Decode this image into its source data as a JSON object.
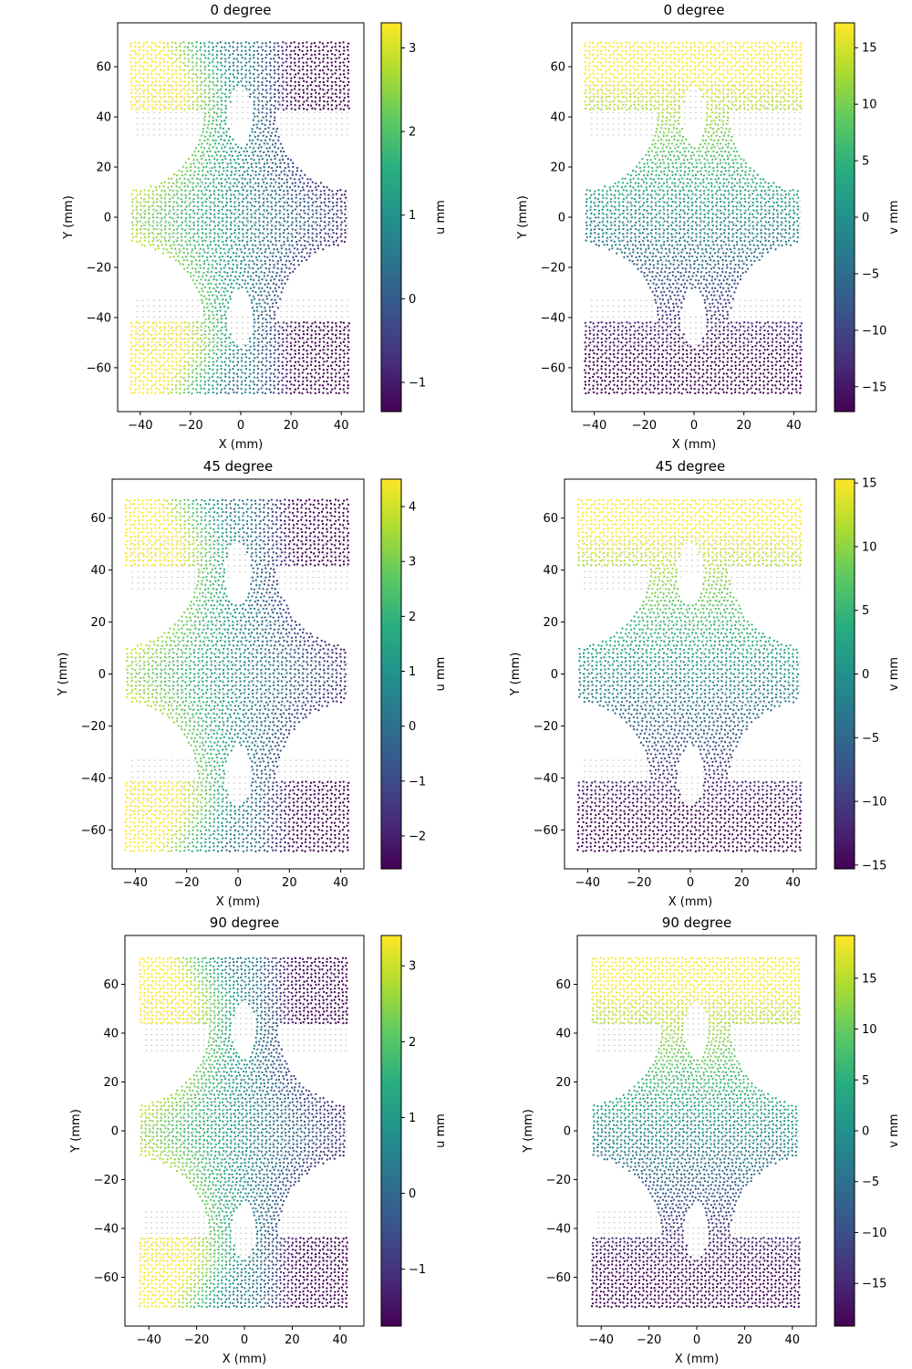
{
  "chart_data": [
    {
      "type": "scatter",
      "title": "0 degree",
      "xlabel": "X (mm)",
      "ylabel": "Y (mm)",
      "colorbar_label": "u mm",
      "xlim": [
        -49,
        49
      ],
      "ylim": [
        -77.5,
        77.5
      ],
      "xticks": [
        -40,
        -20,
        0,
        20,
        40
      ],
      "yticks": [
        -60,
        -40,
        -20,
        0,
        20,
        40,
        60
      ],
      "clim": [
        -1.35,
        3.3
      ],
      "cticks": [
        -1,
        0,
        1,
        2,
        3
      ],
      "field": "u",
      "field_range": [
        -1.35,
        3.3
      ],
      "y_extent": 70,
      "neck_half_width": 14,
      "colormap": "viridis",
      "undeformed_color": "#cccccc"
    },
    {
      "type": "scatter",
      "title": "0 degree",
      "xlabel": "X (mm)",
      "ylabel": "Y (mm)",
      "colorbar_label": "v mm",
      "xlim": [
        -49,
        49
      ],
      "ylim": [
        -77.5,
        77.5
      ],
      "xticks": [
        -40,
        -20,
        0,
        20,
        40
      ],
      "yticks": [
        -60,
        -40,
        -20,
        0,
        20,
        40,
        60
      ],
      "clim": [
        -17.2,
        17.2
      ],
      "cticks": [
        -15,
        -10,
        -5,
        0,
        5,
        10,
        15
      ],
      "field": "v",
      "field_range": [
        -17.2,
        17.2
      ],
      "y_extent": 70,
      "neck_half_width": 14,
      "colormap": "viridis",
      "undeformed_color": "#cccccc"
    },
    {
      "type": "scatter",
      "title": "45 degree",
      "xlabel": "X (mm)",
      "ylabel": "Y (mm)",
      "colorbar_label": "u mm",
      "xlim": [
        -49,
        49
      ],
      "ylim": [
        -75,
        75
      ],
      "xticks": [
        -40,
        -20,
        0,
        20,
        40
      ],
      "yticks": [
        -60,
        -40,
        -20,
        0,
        20,
        40,
        60
      ],
      "clim": [
        -2.6,
        4.5
      ],
      "cticks": [
        -2,
        -1,
        0,
        1,
        2,
        3,
        4
      ],
      "field": "u",
      "field_range": [
        -2.6,
        4.5
      ],
      "y_extent": 68,
      "neck_half_width": 15,
      "colormap": "viridis",
      "undeformed_color": "#cccccc"
    },
    {
      "type": "scatter",
      "title": "45 degree",
      "xlabel": "X (mm)",
      "ylabel": "Y (mm)",
      "colorbar_label": "v mm",
      "xlim": [
        -49,
        49
      ],
      "ylim": [
        -75,
        75
      ],
      "xticks": [
        -40,
        -20,
        0,
        20,
        40
      ],
      "yticks": [
        -60,
        -40,
        -20,
        0,
        20,
        40,
        60
      ],
      "clim": [
        -15.3,
        15.3
      ],
      "cticks": [
        -15,
        -10,
        -5,
        0,
        5,
        10,
        15
      ],
      "field": "v",
      "field_range": [
        -15.3,
        15.3
      ],
      "y_extent": 68,
      "neck_half_width": 15,
      "colormap": "viridis",
      "undeformed_color": "#cccccc"
    },
    {
      "type": "scatter",
      "title": "90 degree",
      "xlabel": "X (mm)",
      "ylabel": "Y (mm)",
      "colorbar_label": "u mm",
      "xlim": [
        -50,
        50
      ],
      "ylim": [
        -80,
        80
      ],
      "xticks": [
        -40,
        -20,
        0,
        20,
        40
      ],
      "yticks": [
        -60,
        -40,
        -20,
        0,
        20,
        40,
        60
      ],
      "clim": [
        -1.75,
        3.4
      ],
      "cticks": [
        -1,
        0,
        1,
        2,
        3
      ],
      "field": "u",
      "field_range": [
        -1.75,
        3.4
      ],
      "y_extent": 72,
      "neck_half_width": 14,
      "colormap": "viridis",
      "undeformed_color": "#cccccc"
    },
    {
      "type": "scatter",
      "title": "90 degree",
      "xlabel": "X (mm)",
      "ylabel": "Y (mm)",
      "colorbar_label": "v mm",
      "xlim": [
        -50,
        50
      ],
      "ylim": [
        -80,
        80
      ],
      "xticks": [
        -40,
        -20,
        0,
        20,
        40
      ],
      "yticks": [
        -60,
        -40,
        -20,
        0,
        20,
        40,
        60
      ],
      "clim": [
        -19.2,
        19.2
      ],
      "cticks": [
        -15,
        -10,
        -5,
        0,
        5,
        10,
        15
      ],
      "field": "v",
      "field_range": [
        -19.2,
        19.2
      ],
      "y_extent": 72,
      "neck_half_width": 14,
      "colormap": "viridis",
      "undeformed_color": "#cccccc"
    }
  ]
}
